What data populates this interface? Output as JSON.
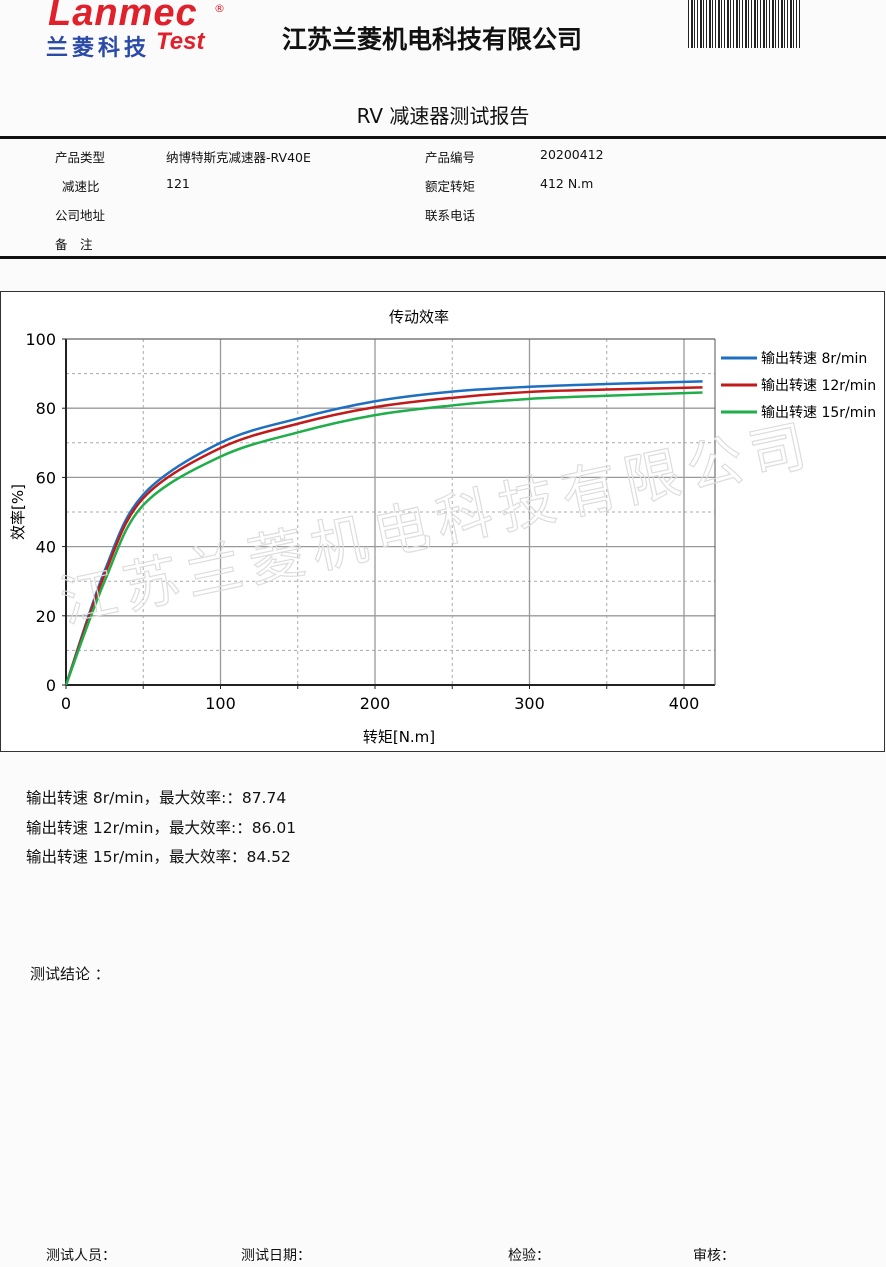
{
  "header": {
    "logo_text": "Lanmec",
    "logo_registered": "®",
    "logo_cn": "兰菱科技",
    "logo_test": "Test",
    "company": "江苏兰菱机电科技有限公司",
    "report_title": "RV 减速器测试报告"
  },
  "info": {
    "product_type_label": "产品类型",
    "product_type": "纳博特斯克减速器-RV40E",
    "product_no_label": "产品编号",
    "product_no": "20200412",
    "ratio_label": "减速比",
    "ratio": "121",
    "rated_torque_label": "额定转矩",
    "rated_torque": "412 N.m",
    "address_label": "公司地址",
    "address": "",
    "phone_label": "联系电话",
    "phone": "",
    "remark_label": "备　注",
    "remark": ""
  },
  "watermark": "江苏兰菱机电科技有限公司",
  "chart_data": {
    "type": "line",
    "title": "传动效率",
    "xlabel": "转矩[N.m]",
    "ylabel": "效率[%]",
    "xlim": [
      0,
      420
    ],
    "ylim": [
      0,
      100
    ],
    "xticks": [
      0,
      100,
      200,
      300,
      400
    ],
    "yticks": [
      0,
      20,
      40,
      60,
      80,
      100
    ],
    "grid": true,
    "legend": "right",
    "x": [
      0,
      25,
      50,
      100,
      150,
      200,
      250,
      300,
      350,
      412
    ],
    "series": [
      {
        "name": "输出转速 8r/min",
        "color": "#1f6fc0",
        "values": [
          0,
          33,
          55,
          70,
          77,
          82,
          84.8,
          86.2,
          87,
          87.74
        ]
      },
      {
        "name": "输出转速 12r/min",
        "color": "#c01a1a",
        "values": [
          0,
          32,
          54,
          68.5,
          75.5,
          80.3,
          83,
          84.7,
          85.4,
          86.01
        ]
      },
      {
        "name": "输出转速 15r/min",
        "color": "#1fae4a",
        "values": [
          0,
          30,
          52,
          66,
          73,
          78,
          80.8,
          82.7,
          83.6,
          84.52
        ]
      }
    ]
  },
  "summary": [
    "输出转速 8r/min，最大效率:：87.74",
    "输出转速 12r/min，最大效率:：86.01",
    "输出转速 15r/min，最大效率：84.52"
  ],
  "conclusion_label": "测试结论 ：",
  "footer": {
    "tester": "测试人员：",
    "date": "测试日期：",
    "inspect": "检验：",
    "review": "审核："
  }
}
